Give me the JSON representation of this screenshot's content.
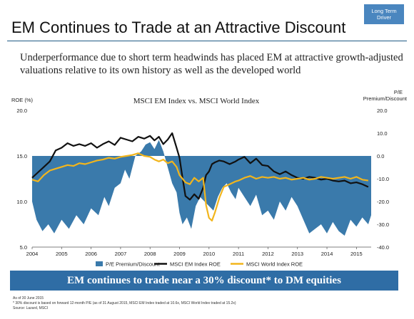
{
  "badge": "Long Term Driver",
  "title": "EM Continues to Trade at an Attractive Discount",
  "subtitle": "Underperformance due to short term headwinds has placed EM at attractive growth-adjusted valuations relative to its own history as well as the developed world",
  "banner": "EM continues to trade near a 30% discount* to DM equities",
  "footnotes": [
    "As of 30 June 2015",
    "* 30% discount is based on forward 12-month P/E (as of 31 August 2015, MSCI EM Index traded at 10.6x, MSCI World Index traded at 15.2x)",
    "Source: Lazard, MSCI"
  ],
  "colors": {
    "area": "#3a7aab",
    "em_line": "#111111",
    "world_line": "#f2b51c",
    "banner": "#2f6da5"
  },
  "chart_data": {
    "type": "line",
    "title": "MSCI EM Index vs. MSCI World Index",
    "y_left_label": "ROE (%)",
    "y_right_label": "P/E Premium/Discount",
    "x_ticks": [
      "2004",
      "2005",
      "2006",
      "2007",
      "2008",
      "2009",
      "2010",
      "2011",
      "2012",
      "2013",
      "2014",
      "2015"
    ],
    "y_left_ticks": [
      "5.0",
      "10.0",
      "15.0",
      "20.0"
    ],
    "y_right_ticks": [
      "-40.0",
      "-30.0",
      "-20.0",
      "-10.0",
      "0.0",
      "10.0",
      "20.0"
    ],
    "ylim_left": [
      5,
      20
    ],
    "ylim_right": [
      -40,
      20
    ],
    "xlim": [
      2004,
      2015.5
    ],
    "legend_position": "bottom",
    "series": [
      {
        "name": "P/E Premium/Discount",
        "kind": "area",
        "axis": "right",
        "x": [
          2004,
          2004.15,
          2004.35,
          2004.55,
          2004.75,
          2005,
          2005.25,
          2005.5,
          2005.75,
          2006,
          2006.25,
          2006.45,
          2006.6,
          2006.8,
          2007,
          2007.15,
          2007.3,
          2007.5,
          2007.7,
          2007.85,
          2008,
          2008.15,
          2008.3,
          2008.45,
          2008.6,
          2008.75,
          2008.9,
          2009,
          2009.1,
          2009.25,
          2009.4,
          2009.55,
          2009.7,
          2009.85,
          2010,
          2010.15,
          2010.3,
          2010.45,
          2010.6,
          2010.75,
          2010.9,
          2011,
          2011.2,
          2011.4,
          2011.6,
          2011.8,
          2012,
          2012.2,
          2012.4,
          2012.6,
          2012.8,
          2013,
          2013.2,
          2013.4,
          2013.6,
          2013.8,
          2014,
          2014.2,
          2014.4,
          2014.6,
          2014.8,
          2015,
          2015.2,
          2015.4,
          2015.5
        ],
        "values": [
          -20,
          -28,
          -33,
          -30,
          -34,
          -28,
          -32,
          -26,
          -30,
          -23,
          -26,
          -18,
          -22,
          -14,
          -12,
          -6,
          -10,
          0,
          2,
          5,
          6,
          3,
          7,
          2,
          -5,
          -12,
          -16,
          -25,
          -30,
          -27,
          -32,
          -22,
          -18,
          -20,
          -22,
          -24,
          -18,
          -14,
          -12,
          -16,
          -19,
          -14,
          -18,
          -22,
          -17,
          -26,
          -24,
          -28,
          -20,
          -24,
          -18,
          -22,
          -28,
          -34,
          -32,
          -30,
          -34,
          -29,
          -33,
          -35,
          -28,
          -31,
          -27,
          -30,
          -26
        ]
      },
      {
        "name": "MSCI EM Index ROE",
        "kind": "line",
        "axis": "left",
        "x": [
          2004,
          2004.2,
          2004.4,
          2004.6,
          2004.8,
          2005,
          2005.2,
          2005.4,
          2005.6,
          2005.8,
          2006,
          2006.2,
          2006.4,
          2006.6,
          2006.8,
          2007,
          2007.2,
          2007.4,
          2007.6,
          2007.8,
          2008,
          2008.15,
          2008.3,
          2008.45,
          2008.6,
          2008.75,
          2008.9,
          2009,
          2009.1,
          2009.2,
          2009.35,
          2009.5,
          2009.65,
          2009.8,
          2009.9,
          2010,
          2010.1,
          2010.2,
          2010.35,
          2010.5,
          2010.7,
          2010.9,
          2011,
          2011.2,
          2011.4,
          2011.6,
          2011.8,
          2012,
          2012.2,
          2012.4,
          2012.6,
          2012.8,
          2013,
          2013.2,
          2013.4,
          2013.6,
          2013.8,
          2014,
          2014.2,
          2014.4,
          2014.6,
          2014.8,
          2015,
          2015.2,
          2015.4
        ],
        "values": [
          12.6,
          13.2,
          13.8,
          14.4,
          15.6,
          15.9,
          16.4,
          16.1,
          16.3,
          16.1,
          16.4,
          15.9,
          16.3,
          16.6,
          16.2,
          17.0,
          16.8,
          16.6,
          17.1,
          16.9,
          17.2,
          16.7,
          17.1,
          16.3,
          16.8,
          17.5,
          15.9,
          14.8,
          12.6,
          10.6,
          10.2,
          10.8,
          10.3,
          11.5,
          12.9,
          13.3,
          14.1,
          14.3,
          14.5,
          14.4,
          14.1,
          14.4,
          14.6,
          14.9,
          14.2,
          14.7,
          14.0,
          13.9,
          13.3,
          13.0,
          13.3,
          12.9,
          12.6,
          12.5,
          12.7,
          12.6,
          12.4,
          12.5,
          12.3,
          12.2,
          12.3,
          12.0,
          12.1,
          11.9,
          11.6
        ]
      },
      {
        "name": "MSCI World Index ROE",
        "kind": "line",
        "axis": "left",
        "x": [
          2004,
          2004.2,
          2004.4,
          2004.6,
          2004.8,
          2005,
          2005.2,
          2005.4,
          2005.6,
          2005.8,
          2006,
          2006.2,
          2006.4,
          2006.6,
          2006.8,
          2007,
          2007.2,
          2007.4,
          2007.6,
          2007.8,
          2008,
          2008.15,
          2008.3,
          2008.45,
          2008.6,
          2008.75,
          2008.9,
          2009,
          2009.1,
          2009.2,
          2009.35,
          2009.5,
          2009.65,
          2009.8,
          2009.9,
          2010,
          2010.1,
          2010.2,
          2010.35,
          2010.5,
          2010.7,
          2010.9,
          2011,
          2011.2,
          2011.4,
          2011.6,
          2011.8,
          2012,
          2012.2,
          2012.4,
          2012.6,
          2012.8,
          2013,
          2013.2,
          2013.4,
          2013.6,
          2013.8,
          2014,
          2014.2,
          2014.4,
          2014.6,
          2014.8,
          2015,
          2015.2,
          2015.4
        ],
        "values": [
          12.4,
          12.2,
          12.9,
          13.4,
          13.6,
          13.8,
          14.0,
          13.9,
          14.2,
          14.1,
          14.3,
          14.5,
          14.6,
          14.8,
          14.7,
          14.9,
          15.0,
          15.1,
          15.3,
          15.0,
          14.9,
          14.6,
          14.4,
          14.6,
          14.2,
          14.4,
          13.8,
          12.9,
          12.5,
          12.1,
          11.9,
          12.6,
          12.2,
          12.6,
          9.6,
          8.2,
          7.9,
          8.8,
          10.4,
          11.6,
          11.9,
          12.2,
          12.3,
          12.6,
          12.8,
          12.5,
          12.7,
          12.6,
          12.7,
          12.5,
          12.6,
          12.4,
          12.5,
          12.6,
          12.4,
          12.5,
          12.7,
          12.6,
          12.5,
          12.6,
          12.7,
          12.5,
          12.7,
          12.4,
          12.3
        ]
      }
    ]
  }
}
